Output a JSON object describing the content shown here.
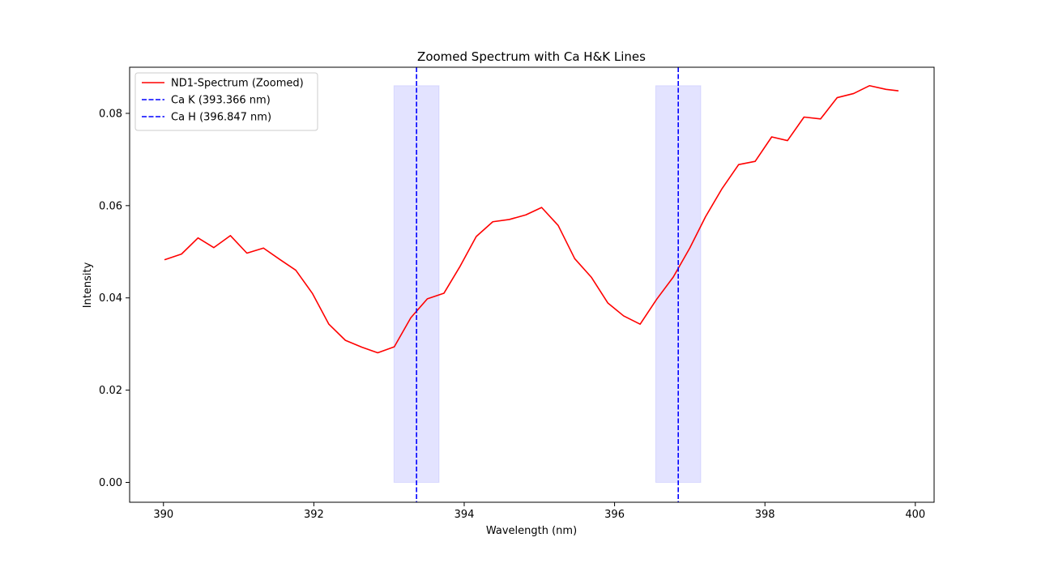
{
  "chart_data": {
    "type": "line",
    "title": "Zoomed Spectrum with Ca H&K Lines",
    "xlabel": "Wavelength (nm)",
    "ylabel": "Intensity",
    "xlim": [
      389.55,
      400.25
    ],
    "ylim": [
      -0.0043,
      0.09
    ],
    "xticks": [
      {
        "value": 390,
        "label": "390"
      },
      {
        "value": 392,
        "label": "392"
      },
      {
        "value": 394,
        "label": "394"
      },
      {
        "value": 396,
        "label": "396"
      },
      {
        "value": 398,
        "label": "398"
      },
      {
        "value": 400,
        "label": "400"
      }
    ],
    "yticks": [
      {
        "value": 0.0,
        "label": "0.00"
      },
      {
        "value": 0.02,
        "label": "0.02"
      },
      {
        "value": 0.04,
        "label": "0.04"
      },
      {
        "value": 0.06,
        "label": "0.06"
      },
      {
        "value": 0.08,
        "label": "0.08"
      }
    ],
    "grid": false,
    "legend_position": "top-left",
    "series": [
      {
        "name": "ND1-Spectrum (Zoomed)",
        "color": "#ff0000",
        "x": [
          390.02,
          390.24,
          390.46,
          390.67,
          390.89,
          391.11,
          391.33,
          391.55,
          391.76,
          391.98,
          392.2,
          392.42,
          392.64,
          392.85,
          393.07,
          393.29,
          393.51,
          393.73,
          393.94,
          394.16,
          394.38,
          394.6,
          394.82,
          395.03,
          395.25,
          395.47,
          395.69,
          395.91,
          396.12,
          396.34,
          396.56,
          396.78,
          397.0,
          397.21,
          397.43,
          397.65,
          397.87,
          398.09,
          398.3,
          398.52,
          398.74,
          398.96,
          399.18,
          399.39,
          399.61,
          399.77
        ],
        "y": [
          0.0483,
          0.0495,
          0.053,
          0.0509,
          0.0535,
          0.0497,
          0.0508,
          0.0483,
          0.046,
          0.041,
          0.0343,
          0.0308,
          0.0293,
          0.0281,
          0.0294,
          0.0357,
          0.0398,
          0.041,
          0.0467,
          0.0533,
          0.0565,
          0.057,
          0.058,
          0.0596,
          0.0557,
          0.0485,
          0.0445,
          0.0389,
          0.0361,
          0.0343,
          0.0397,
          0.0445,
          0.0508,
          0.0576,
          0.0637,
          0.0689,
          0.0696,
          0.0749,
          0.0741,
          0.0792,
          0.0788,
          0.0834,
          0.0843,
          0.086,
          0.0852,
          0.0849
        ]
      }
    ],
    "lines": [
      {
        "name": "Ca K (393.366 nm)",
        "x": 393.366,
        "color": "#0000ff",
        "style": "dashed"
      },
      {
        "name": "Ca H (396.847 nm)",
        "x": 396.847,
        "color": "#0000ff",
        "style": "dashed"
      }
    ],
    "bands": [
      {
        "x0": 393.066,
        "x1": 393.666,
        "y0": 0.0,
        "y1": 0.086,
        "color": "#0000ff",
        "opacity": 0.11
      },
      {
        "x0": 396.547,
        "x1": 397.147,
        "y0": 0.0,
        "y1": 0.086,
        "color": "#0000ff",
        "opacity": 0.11
      }
    ]
  }
}
